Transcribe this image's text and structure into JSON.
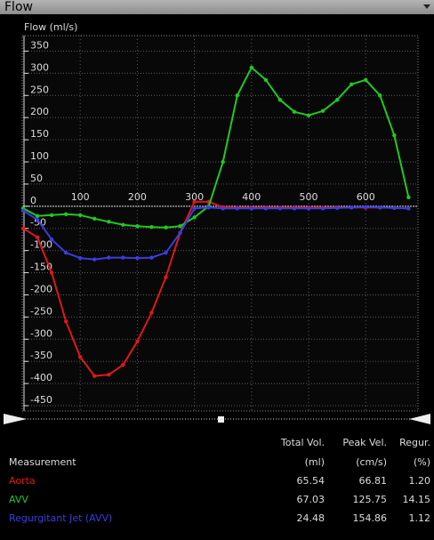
{
  "header": {
    "title": "Flow"
  },
  "chart_data": {
    "type": "line",
    "y_label": "Flow (ml/s)",
    "x": [
      0,
      25,
      50,
      75,
      100,
      125,
      150,
      175,
      200,
      225,
      250,
      275,
      300,
      325,
      350,
      375,
      400,
      425,
      450,
      475,
      500,
      525,
      550,
      575,
      600,
      625,
      650,
      675
    ],
    "xlim": [
      0,
      690
    ],
    "ylim": [
      -462,
      385
    ],
    "xticks": [
      100,
      200,
      300,
      400,
      500,
      600
    ],
    "yticks": [
      350,
      300,
      250,
      200,
      150,
      100,
      50,
      0,
      -50,
      -100,
      -150,
      -200,
      -250,
      -300,
      -350,
      -400,
      -450
    ],
    "grid": true,
    "series": [
      {
        "name": "Aorta",
        "color": "#e01818",
        "values": [
          -50,
          -70,
          -150,
          -260,
          -340,
          -383,
          -380,
          -358,
          -305,
          -240,
          -160,
          -60,
          10,
          10,
          -2,
          -3,
          -3,
          -3,
          -3,
          -3,
          -3,
          -3,
          -3,
          -3,
          -3,
          -3,
          -4,
          -5
        ]
      },
      {
        "name": "AVV",
        "color": "#22c822",
        "values": [
          -5,
          -22,
          -20,
          -18,
          -20,
          -28,
          -35,
          -42,
          -45,
          -47,
          -48,
          -45,
          -25,
          0,
          100,
          250,
          313,
          285,
          240,
          213,
          205,
          215,
          240,
          275,
          285,
          250,
          160,
          20
        ]
      },
      {
        "name": "Regurgitant Jet (AVV)",
        "color": "#3c3ce0",
        "values": [
          -10,
          -30,
          -75,
          -105,
          -117,
          -120,
          -116,
          -116,
          -117,
          -116,
          -105,
          -60,
          -5,
          -3,
          -5,
          -5,
          -5,
          -5,
          -5,
          -5,
          -5,
          -5,
          -4,
          -3,
          -2,
          -3,
          -4,
          -5
        ]
      }
    ]
  },
  "table": {
    "header_top": [
      "Total Vol.",
      "Peak Vel.",
      "Regur."
    ],
    "header": [
      "Measurement",
      "(ml)",
      "(cm/s)",
      "(%)"
    ],
    "rows": [
      [
        "65.54",
        "66.81",
        "1.20"
      ],
      [
        "67.03",
        "125.75",
        "14.15"
      ],
      [
        "24.48",
        "154.86",
        "1.12"
      ]
    ]
  }
}
